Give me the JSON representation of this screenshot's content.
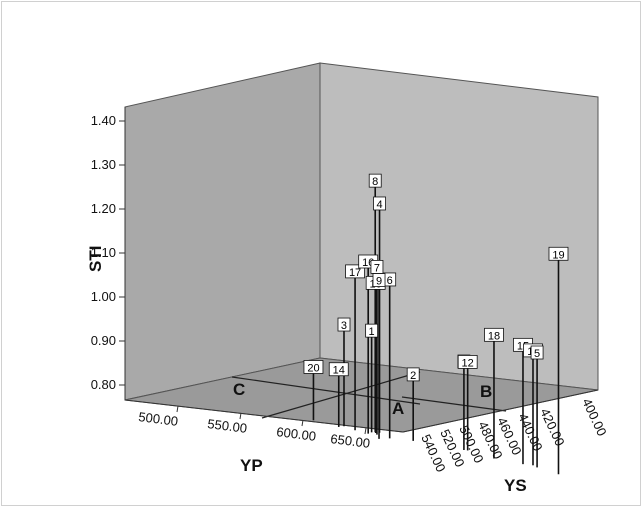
{
  "chart_data": {
    "type": "3d-scatter-drop-lines",
    "title": "",
    "xlabel": "YP",
    "ylabel": "YS",
    "zlabel": "STI",
    "x_ticks": [
      "500.00",
      "550.00",
      "600.00",
      "650.00"
    ],
    "y_ticks": [
      "540.00",
      "520.00",
      "500.00",
      "480.00",
      "460.00",
      "440.00",
      "420.00",
      "400.00"
    ],
    "z_ticks": [
      "0.80",
      "0.90",
      "1.00",
      "1.10",
      "1.20",
      "1.30",
      "1.40"
    ],
    "region_labels": [
      "A",
      "B",
      "C"
    ],
    "points": [
      {
        "label": "1",
        "YP": 624,
        "YS": 515,
        "STI": 1.01
      },
      {
        "label": "2",
        "YP": 629,
        "YS": 492,
        "STI": 0.93
      },
      {
        "label": "3",
        "YP": 624,
        "YS": 533,
        "STI": 1.01
      },
      {
        "label": "4",
        "YP": 634,
        "YS": 518,
        "STI": 1.3
      },
      {
        "label": "5",
        "YP": 636,
        "YS": 417,
        "STI": 1.04
      },
      {
        "label": "6",
        "YP": 609,
        "YS": 491,
        "STI": 1.14
      },
      {
        "label": "7",
        "YP": 616,
        "YS": 505,
        "STI": 1.16
      },
      {
        "label": "8",
        "YP": 633,
        "YS": 520,
        "STI": 1.35
      },
      {
        "label": "9",
        "YP": 587,
        "YS": 480,
        "STI": 1.14
      },
      {
        "label": "10",
        "YP": 626,
        "YS": 514,
        "STI": 1.12
      },
      {
        "label": "11",
        "YP": 645,
        "YS": 427,
        "STI": 1.04
      },
      {
        "label": "12",
        "YP": 648,
        "YS": 472,
        "STI": 0.98
      },
      {
        "label": "14",
        "YP": 610,
        "YS": 525,
        "STI": 0.91
      },
      {
        "label": "15",
        "YP": 637,
        "YS": 427,
        "STI": 1.05
      },
      {
        "label": "16",
        "YP": 609,
        "YS": 505,
        "STI": 1.17
      },
      {
        "label": "17",
        "YP": 612,
        "YS": 516,
        "STI": 1.14
      },
      {
        "label": "18",
        "YP": 631,
        "YS": 441,
        "STI": 1.06
      },
      {
        "label": "19",
        "YP": 620,
        "YS": 390,
        "STI": 1.28
      },
      {
        "label": "20",
        "YP": 618,
        "YS": 548,
        "STI": 0.9
      },
      {
        "label": "1",
        "YP": 645,
        "YS": 472,
        "STI": 0.98
      }
    ]
  }
}
